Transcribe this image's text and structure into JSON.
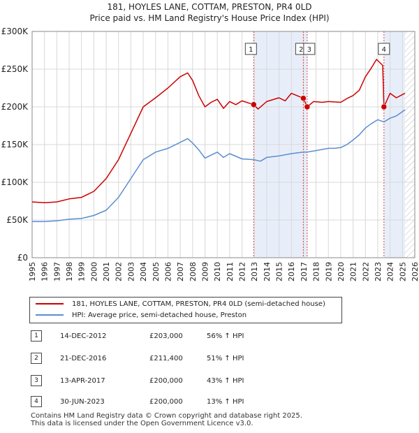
{
  "title_line1": "181, HOYLES LANE, COTTAM, PRESTON, PR4 0LD",
  "title_line2": "Price paid vs. HM Land Registry's House Price Index (HPI)",
  "legend": {
    "price_paid": "181, HOYLES LANE, COTTAM, PRESTON, PR4 0LD (semi-detached house)",
    "hpi": "HPI: Average price, semi-detached house, Preston"
  },
  "colors": {
    "price_paid": "#cc0000",
    "hpi": "#5a8ed0",
    "shade": "#e8eef9",
    "grid": "#d8d8d8"
  },
  "sales": [
    {
      "num": "1",
      "date": "14-DEC-2012",
      "price": "£203,000",
      "hpi": "56% ↑ HPI"
    },
    {
      "num": "2",
      "date": "21-DEC-2016",
      "price": "£211,400",
      "hpi": "51% ↑ HPI"
    },
    {
      "num": "3",
      "date": "13-APR-2017",
      "price": "£200,000",
      "hpi": "43% ↑ HPI"
    },
    {
      "num": "4",
      "date": "30-JUN-2023",
      "price": "£200,000",
      "hpi": "13% ↑ HPI"
    }
  ],
  "footer_line1": "Contains HM Land Registry data © Crown copyright and database right 2025.",
  "footer_line2": "This data is licensed under the Open Government Licence v3.0.",
  "chart_data": {
    "type": "line",
    "title": "Price paid vs. HM Land Registry's House Price Index (HPI)",
    "xlabel": "",
    "ylabel": "",
    "xlim": [
      1995,
      2026
    ],
    "ylim": [
      0,
      300000
    ],
    "y_ticks": [
      0,
      50000,
      100000,
      150000,
      200000,
      250000,
      300000
    ],
    "y_tick_labels": [
      "£0",
      "£50K",
      "£100K",
      "£150K",
      "£200K",
      "£250K",
      "£300K"
    ],
    "x_ticks": [
      1995,
      1996,
      1997,
      1998,
      1999,
      2000,
      2001,
      2002,
      2003,
      2004,
      2005,
      2006,
      2007,
      2008,
      2009,
      2010,
      2011,
      2012,
      2013,
      2014,
      2015,
      2016,
      2017,
      2018,
      2019,
      2020,
      2021,
      2022,
      2023,
      2024,
      2025,
      2026
    ],
    "grid": true,
    "legend_position": "below",
    "shaded_ranges": [
      [
        2012.95,
        2017.28
      ],
      [
        2023.5,
        2025.2
      ]
    ],
    "hatched_range": [
      2025.2,
      2026
    ],
    "series": [
      {
        "name": "181, HOYLES LANE, COTTAM, PRESTON, PR4 0LD (semi-detached house)",
        "color": "#cc0000",
        "x": [
          1995,
          1996,
          1997,
          1998,
          1999,
          2000,
          2001,
          2002,
          2003,
          2004,
          2005,
          2006,
          2007,
          2007.6,
          2008,
          2008.5,
          2009,
          2009.5,
          2010,
          2010.5,
          2011,
          2011.5,
          2012,
          2012.95,
          2013.3,
          2014,
          2015,
          2015.5,
          2016,
          2016.97,
          2017.28,
          2017.8,
          2018.5,
          2019,
          2020,
          2020.5,
          2021,
          2021.5,
          2022,
          2022.5,
          2022.9,
          2023.4,
          2023.5,
          2024,
          2024.5,
          2025.2
        ],
        "values": [
          74000,
          73000,
          74000,
          78000,
          80000,
          88000,
          105000,
          130000,
          165000,
          200000,
          212000,
          225000,
          240000,
          245000,
          235000,
          215000,
          200000,
          206000,
          210000,
          198000,
          207000,
          203000,
          208000,
          203000,
          197000,
          207000,
          212000,
          208000,
          218000,
          211400,
          200000,
          207000,
          206000,
          207000,
          206000,
          211000,
          215000,
          222000,
          240000,
          252000,
          263000,
          255000,
          200000,
          218000,
          212000,
          218000
        ]
      },
      {
        "name": "HPI: Average price, semi-detached house, Preston",
        "color": "#5a8ed0",
        "x": [
          1995,
          1996,
          1997,
          1998,
          1999,
          2000,
          2001,
          2002,
          2003,
          2004,
          2005,
          2006,
          2007,
          2007.6,
          2008,
          2008.5,
          2009,
          2009.5,
          2010,
          2010.5,
          2011,
          2012,
          2012.95,
          2013.5,
          2014,
          2015,
          2016,
          2016.97,
          2017.28,
          2018,
          2019,
          2019.5,
          2020,
          2020.5,
          2021,
          2021.5,
          2022,
          2022.5,
          2023,
          2023.5,
          2024,
          2024.5,
          2025.2
        ],
        "values": [
          48000,
          48000,
          49000,
          51000,
          52000,
          56000,
          63000,
          80000,
          105000,
          130000,
          140000,
          145000,
          153000,
          158000,
          152000,
          143000,
          132000,
          136000,
          140000,
          133000,
          138000,
          131000,
          130000,
          128000,
          133000,
          135000,
          138000,
          140000,
          140000,
          142000,
          145000,
          145000,
          146000,
          150000,
          156000,
          163000,
          172000,
          178000,
          183000,
          180000,
          185000,
          188000,
          196000
        ]
      }
    ],
    "sale_points": [
      {
        "label": "1",
        "x": 2012.95,
        "value": 203000
      },
      {
        "label": "2",
        "x": 2016.97,
        "value": 211400
      },
      {
        "label": "3",
        "x": 2017.28,
        "value": 200000
      },
      {
        "label": "4",
        "x": 2023.5,
        "value": 200000
      }
    ]
  }
}
